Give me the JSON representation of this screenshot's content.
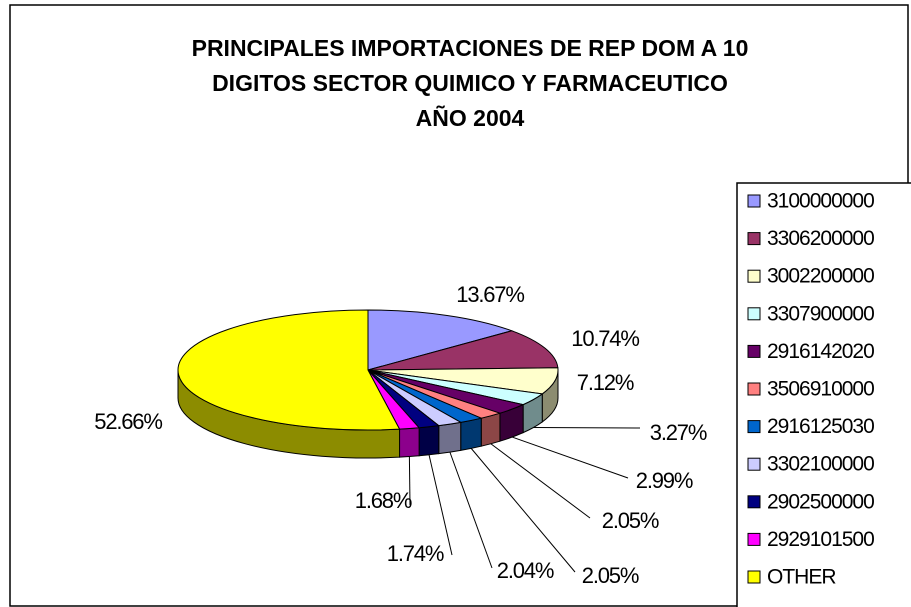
{
  "chart_data": {
    "type": "pie3d",
    "title": [
      "PRINCIPALES IMPORTACIONES DE REP DOM A 10",
      "DIGITOS SECTOR QUIMICO Y FARMACEUTICO",
      "AÑO 2004"
    ],
    "categories": [
      "3100000000",
      "3306200000",
      "3002200000",
      "3307900000",
      "2916142020",
      "3506910000",
      "2916125030",
      "3302100000",
      "2902500000",
      "2929101500",
      "OTHER"
    ],
    "values": [
      13.67,
      10.74,
      7.12,
      3.27,
      2.99,
      2.05,
      2.05,
      2.04,
      1.74,
      1.68,
      52.66
    ],
    "value_labels": [
      "13.67%",
      "10.74%",
      "7.12%",
      "3.27%",
      "2.99%",
      "2.05%",
      "2.05%",
      "2.04%",
      "1.74%",
      "1.68%",
      "52.66%"
    ],
    "colors": [
      "#9999ff",
      "#993366",
      "#ffffcc",
      "#ccffff",
      "#660066",
      "#ff8080",
      "#0066cc",
      "#ccccff",
      "#000080",
      "#ff00ff",
      "#ffff00"
    ],
    "legend": "right"
  }
}
